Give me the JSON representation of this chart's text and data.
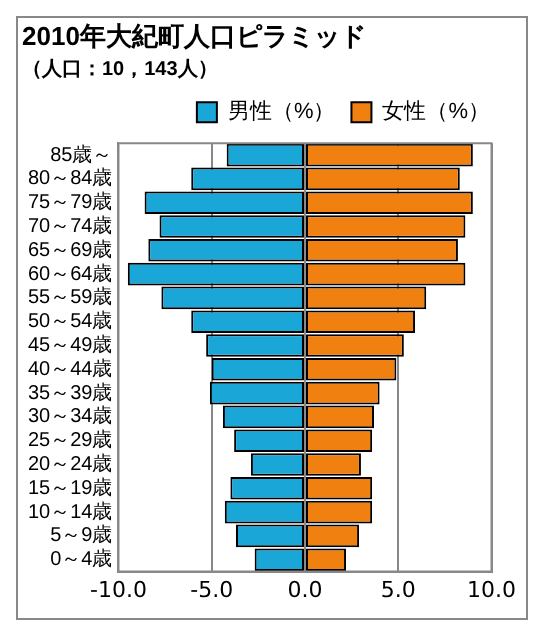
{
  "chart_data": {
    "type": "bar",
    "orientation": "horizontal",
    "stacked": true,
    "title": "2010年大紀町人口ピラミッド",
    "subtitle": "（人口：10，143人）",
    "categories": [
      "85歳～",
      "80～84歳",
      "75～79歳",
      "70～74歳",
      "65～69歳",
      "60～64歳",
      "55～59歳",
      "50～54歳",
      "45～49歳",
      "40～44歳",
      "35～39歳",
      "30～34歳",
      "25～29歳",
      "20～24歳",
      "15～19歳",
      "10～14歳",
      "5～9歳",
      "0～4歳"
    ],
    "series": [
      {
        "name": "男性（%）",
        "color": "#1ba6d8",
        "values": [
          -4.2,
          -6.1,
          -8.6,
          -7.8,
          -8.4,
          -9.5,
          -7.7,
          -6.1,
          -5.3,
          -5.0,
          -5.1,
          -4.4,
          -3.8,
          -2.9,
          -4.0,
          -4.3,
          -3.7,
          -2.7
        ]
      },
      {
        "name": "女性（%）",
        "color": "#f08010",
        "values": [
          9.0,
          8.3,
          9.0,
          8.6,
          8.2,
          8.6,
          6.5,
          5.9,
          5.3,
          4.9,
          4.0,
          3.7,
          3.6,
          3.0,
          3.6,
          3.6,
          2.9,
          2.2
        ]
      }
    ],
    "xlim": [
      -10,
      10
    ],
    "xticks": [
      {
        "value": -10,
        "label": "-10.0"
      },
      {
        "value": -5,
        "label": "-5.0"
      },
      {
        "value": 0,
        "label": "0.0"
      },
      {
        "value": 5,
        "label": "5.0"
      },
      {
        "value": 10,
        "label": "10.0"
      }
    ],
    "grid": "x",
    "legend": "top right"
  }
}
